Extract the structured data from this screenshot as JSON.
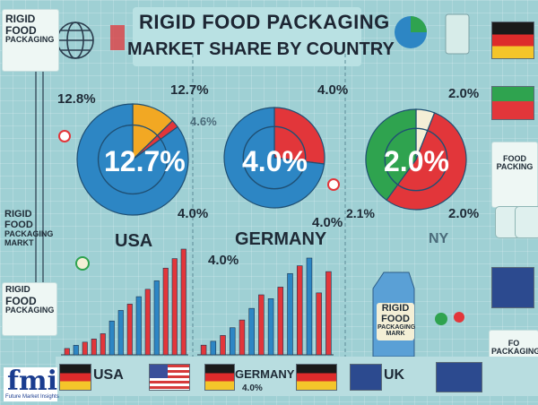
{
  "title": "RIGID FOOD PACKAGING",
  "subtitle": "MARKET SHARE BY COUNTRY",
  "side_cards": {
    "top_left": [
      "RIGID",
      "FOOD",
      "PACKAGING"
    ],
    "mid_left": [
      "RIGID",
      "FOOD",
      "PACKAGING",
      "MARKT"
    ],
    "low_left": [
      "RIGID",
      "FOOD",
      "PACKAGING"
    ],
    "right": [
      "FOOD",
      "PACKING"
    ],
    "bottom_right": [
      "FO",
      "PACKAGING"
    ],
    "carton": [
      "RIGID",
      "FOOD",
      "PACKAGING",
      "MARK"
    ]
  },
  "logo": {
    "name": "fmi",
    "tagline": "Future Market Insights"
  },
  "colors": {
    "blue": "#2d86c4",
    "red": "#e2363a",
    "orange": "#f2a823",
    "green": "#2fa34f",
    "cream": "#f4efd6"
  },
  "chart_data": [
    {
      "type": "pie",
      "name": "USA",
      "center_label": "12.7%",
      "labels": [
        "12.8%",
        "12.7%",
        "4.6%",
        "4.0%"
      ],
      "slices": [
        {
          "value": 12.7,
          "color": "#f2a823"
        },
        {
          "value": 2.3,
          "color": "#e2363a"
        },
        {
          "value": 85.0,
          "color": "#2d86c4"
        }
      ]
    },
    {
      "type": "pie",
      "name": "GERMANY",
      "center_label": "4.0%",
      "labels": [
        "4.0%",
        "4.0%"
      ],
      "slices": [
        {
          "value": 27,
          "color": "#e2363a"
        },
        {
          "value": 73,
          "color": "#2d86c4"
        }
      ]
    },
    {
      "type": "pie",
      "name": "UK",
      "center_label": "2.0%",
      "labels": [
        "2.0%",
        "2.0%",
        "2.1%"
      ],
      "slices": [
        {
          "value": 6,
          "color": "#f4efd6"
        },
        {
          "value": 54,
          "color": "#e2363a"
        },
        {
          "value": 40,
          "color": "#2fa34f"
        }
      ]
    },
    {
      "type": "bar",
      "name": "USA",
      "country_label": "USA",
      "values": [
        6,
        9,
        12,
        15,
        20,
        32,
        42,
        48,
        55,
        62,
        70,
        82,
        91,
        100
      ],
      "colors": [
        "#e2363a",
        "#2d86c4",
        "#e2363a",
        "#e2363a",
        "#e2363a",
        "#2d86c4",
        "#2d86c4",
        "#e2363a",
        "#2d86c4",
        "#e2363a",
        "#2d86c4",
        "#e2363a",
        "#e2363a",
        "#e2363a"
      ]
    },
    {
      "type": "bar",
      "name": "GERMANY",
      "country_label": "GERMANY",
      "sub_label": "4.0%",
      "values": [
        10,
        14,
        20,
        28,
        36,
        48,
        62,
        58,
        70,
        84,
        92,
        100,
        64,
        86
      ],
      "colors": [
        "#e2363a",
        "#2d86c4",
        "#e2363a",
        "#2d86c4",
        "#e2363a",
        "#2d86c4",
        "#e2363a",
        "#2d86c4",
        "#e2363a",
        "#2d86c4",
        "#e2363a",
        "#2d86c4",
        "#e2363a",
        "#e2363a"
      ]
    }
  ],
  "annotations": {
    "bar_area_label": "4.0%",
    "pie3_side_text": "NY",
    "uk_label": "UK"
  }
}
